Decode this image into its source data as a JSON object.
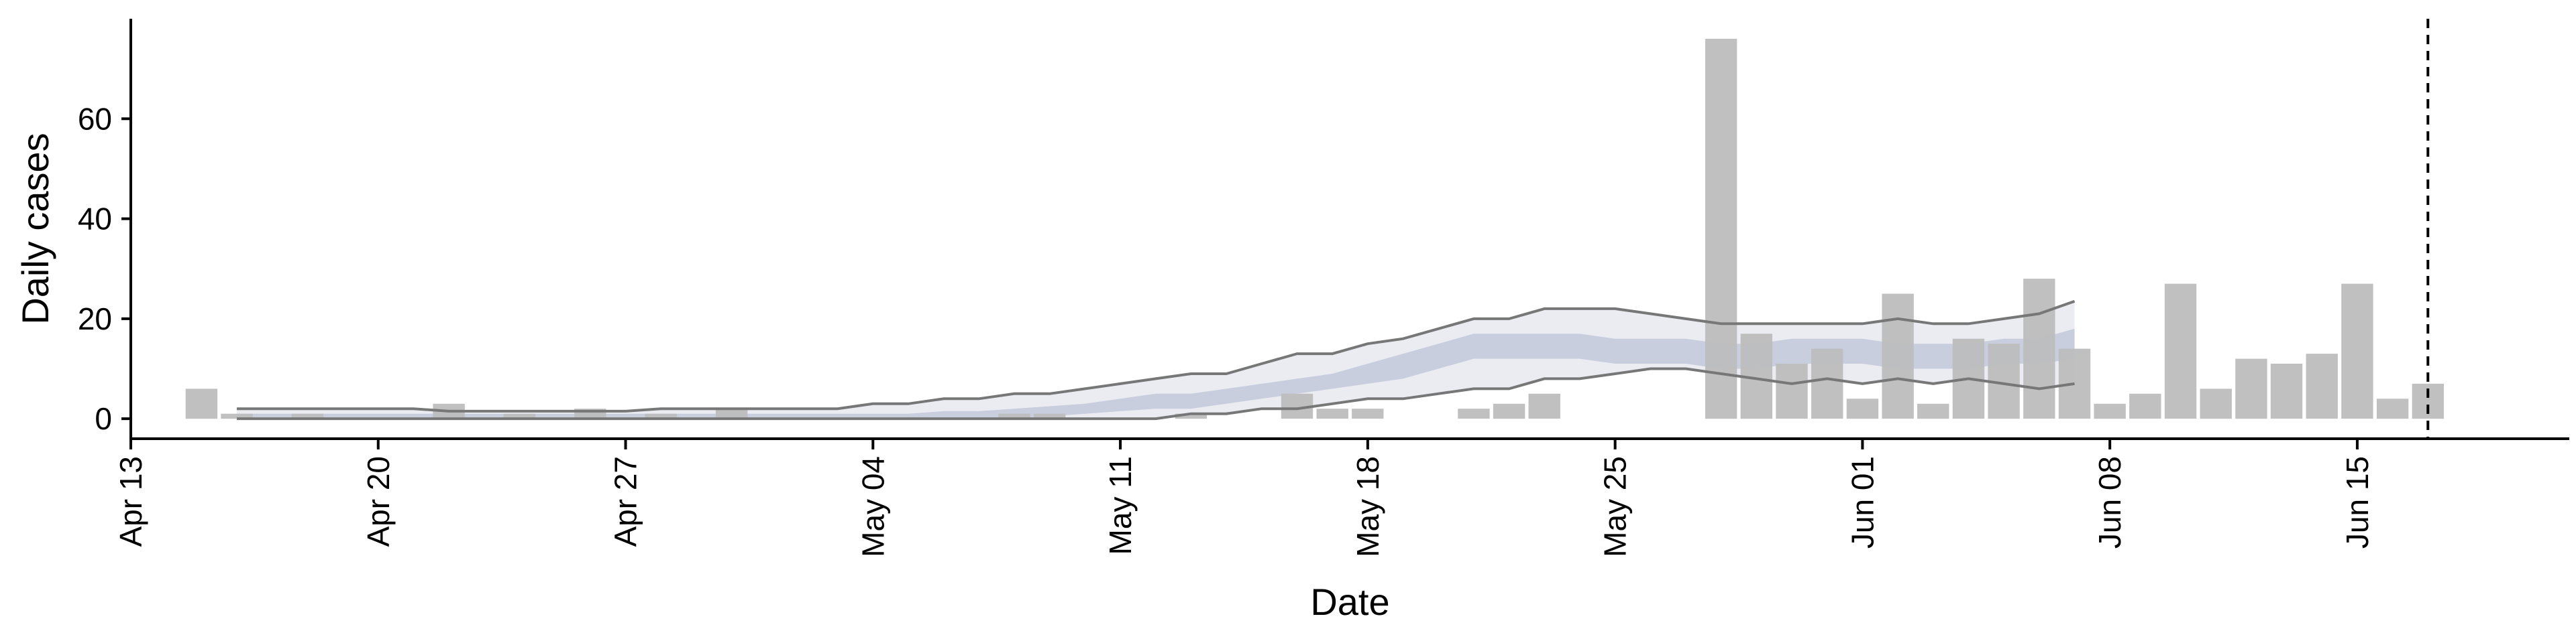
{
  "chart_data": {
    "type": "bar",
    "title": "",
    "xlabel": "Date",
    "ylabel": "Daily cases",
    "y_ticks": [
      "0",
      "20",
      "40",
      "60"
    ],
    "y_tick_values": [
      0,
      20,
      40,
      60
    ],
    "ylim": [
      -4,
      80
    ],
    "x_ticks": [
      "Apr 13",
      "Apr 20",
      "Apr 27",
      "May 04",
      "May 11",
      "May 18",
      "May 25",
      "Jun 01",
      "Jun 08",
      "Jun 15"
    ],
    "x_tick_dates": [
      "2020-04-13",
      "2020-04-20",
      "2020-04-27",
      "2020-05-04",
      "2020-05-11",
      "2020-05-18",
      "2020-05-25",
      "2020-06-01",
      "2020-06-08",
      "2020-06-15"
    ],
    "xlim": [
      "2020-04-13",
      "2020-06-21"
    ],
    "grid": false,
    "legend": "none",
    "colors": {
      "bars": "#bdbdbd",
      "band_outer": "#e6e9f0",
      "band_inner": "#c4cbdc",
      "band_line": "#777777",
      "vline": "#000000",
      "axis": "#000000"
    },
    "observed_cases": {
      "dates": [
        "2020-04-15",
        "2020-04-16",
        "2020-04-18",
        "2020-04-22",
        "2020-04-24",
        "2020-04-26",
        "2020-04-28",
        "2020-04-30",
        "2020-05-08",
        "2020-05-09",
        "2020-05-13",
        "2020-05-16",
        "2020-05-17",
        "2020-05-18",
        "2020-05-21",
        "2020-05-22",
        "2020-05-23",
        "2020-05-28",
        "2020-05-29",
        "2020-05-30",
        "2020-05-31",
        "2020-06-01",
        "2020-06-02",
        "2020-06-03",
        "2020-06-04",
        "2020-06-05",
        "2020-06-06",
        "2020-06-07",
        "2020-06-08",
        "2020-06-09",
        "2020-06-10",
        "2020-06-11",
        "2020-06-12",
        "2020-06-13",
        "2020-06-14",
        "2020-06-15",
        "2020-06-16",
        "2020-06-17"
      ],
      "values": [
        6,
        1,
        1,
        3,
        1,
        2,
        1,
        2,
        1,
        1,
        1,
        5,
        2,
        2,
        2,
        3,
        5,
        76,
        17,
        11,
        14,
        4,
        25,
        3,
        16,
        15,
        28,
        14,
        3,
        5,
        27,
        6,
        12,
        11,
        13,
        27,
        4,
        7
      ]
    },
    "estimate": {
      "dates": [
        "2020-04-16",
        "2020-04-17",
        "2020-04-18",
        "2020-04-19",
        "2020-04-20",
        "2020-04-21",
        "2020-04-22",
        "2020-04-23",
        "2020-04-24",
        "2020-04-25",
        "2020-04-26",
        "2020-04-27",
        "2020-04-28",
        "2020-04-29",
        "2020-04-30",
        "2020-05-01",
        "2020-05-02",
        "2020-05-03",
        "2020-05-04",
        "2020-05-05",
        "2020-05-06",
        "2020-05-07",
        "2020-05-08",
        "2020-05-09",
        "2020-05-10",
        "2020-05-11",
        "2020-05-12",
        "2020-05-13",
        "2020-05-14",
        "2020-05-15",
        "2020-05-16",
        "2020-05-17",
        "2020-05-18",
        "2020-05-19",
        "2020-05-20",
        "2020-05-21",
        "2020-05-22",
        "2020-05-23",
        "2020-05-24",
        "2020-05-25",
        "2020-05-26",
        "2020-05-27",
        "2020-05-28",
        "2020-05-29",
        "2020-05-30",
        "2020-05-31",
        "2020-06-01",
        "2020-06-02",
        "2020-06-03",
        "2020-06-04",
        "2020-06-05",
        "2020-06-06",
        "2020-06-07"
      ],
      "upper_90": [
        2,
        2,
        2,
        2,
        2,
        2,
        1.5,
        1.5,
        1.5,
        1.5,
        1.5,
        1.5,
        2,
        2,
        2,
        2,
        2,
        2,
        3,
        3,
        4,
        4,
        5,
        5,
        6,
        7,
        8,
        9,
        9,
        11,
        13,
        13,
        15,
        16,
        18,
        20,
        20,
        22,
        22,
        22,
        21,
        20,
        19,
        19,
        19,
        19,
        19,
        20,
        19,
        19,
        20,
        21,
        23.5
      ],
      "upper_50": [
        1,
        1,
        1,
        1,
        1,
        1,
        1,
        1,
        1,
        1,
        1,
        1,
        1,
        1,
        1,
        1,
        1,
        1,
        1,
        1,
        1.5,
        1.5,
        2,
        2.5,
        3,
        4,
        5,
        5,
        6,
        7,
        8,
        9,
        11,
        13,
        15,
        17,
        17,
        17,
        17,
        16,
        16,
        16,
        15,
        15,
        16,
        16,
        16,
        15,
        15,
        15,
        16,
        16,
        18
      ],
      "lower_50": [
        0,
        0,
        0,
        0,
        0,
        0,
        0,
        0,
        0,
        0,
        0,
        0,
        0,
        0,
        0,
        0,
        0,
        0,
        0,
        0,
        0,
        0,
        0,
        0.5,
        1,
        1.5,
        2,
        2,
        3,
        4,
        5,
        6,
        7,
        8,
        10,
        12,
        12,
        12,
        12,
        11,
        11,
        11,
        10,
        10,
        11,
        11,
        11,
        10,
        10,
        10,
        11,
        11,
        12
      ],
      "lower_90": [
        0,
        0,
        0,
        0,
        0,
        0,
        0,
        0,
        0,
        0,
        0,
        0,
        0,
        0,
        0,
        0,
        0,
        0,
        0,
        0,
        0,
        0,
        0,
        0,
        0,
        0,
        0,
        1,
        1,
        2,
        2,
        3,
        4,
        4,
        5,
        6,
        6,
        8,
        8,
        9,
        10,
        10,
        9,
        8,
        7,
        8,
        7,
        8,
        7,
        8,
        7,
        6,
        7
      ]
    },
    "vline_date": "2020-06-17"
  }
}
